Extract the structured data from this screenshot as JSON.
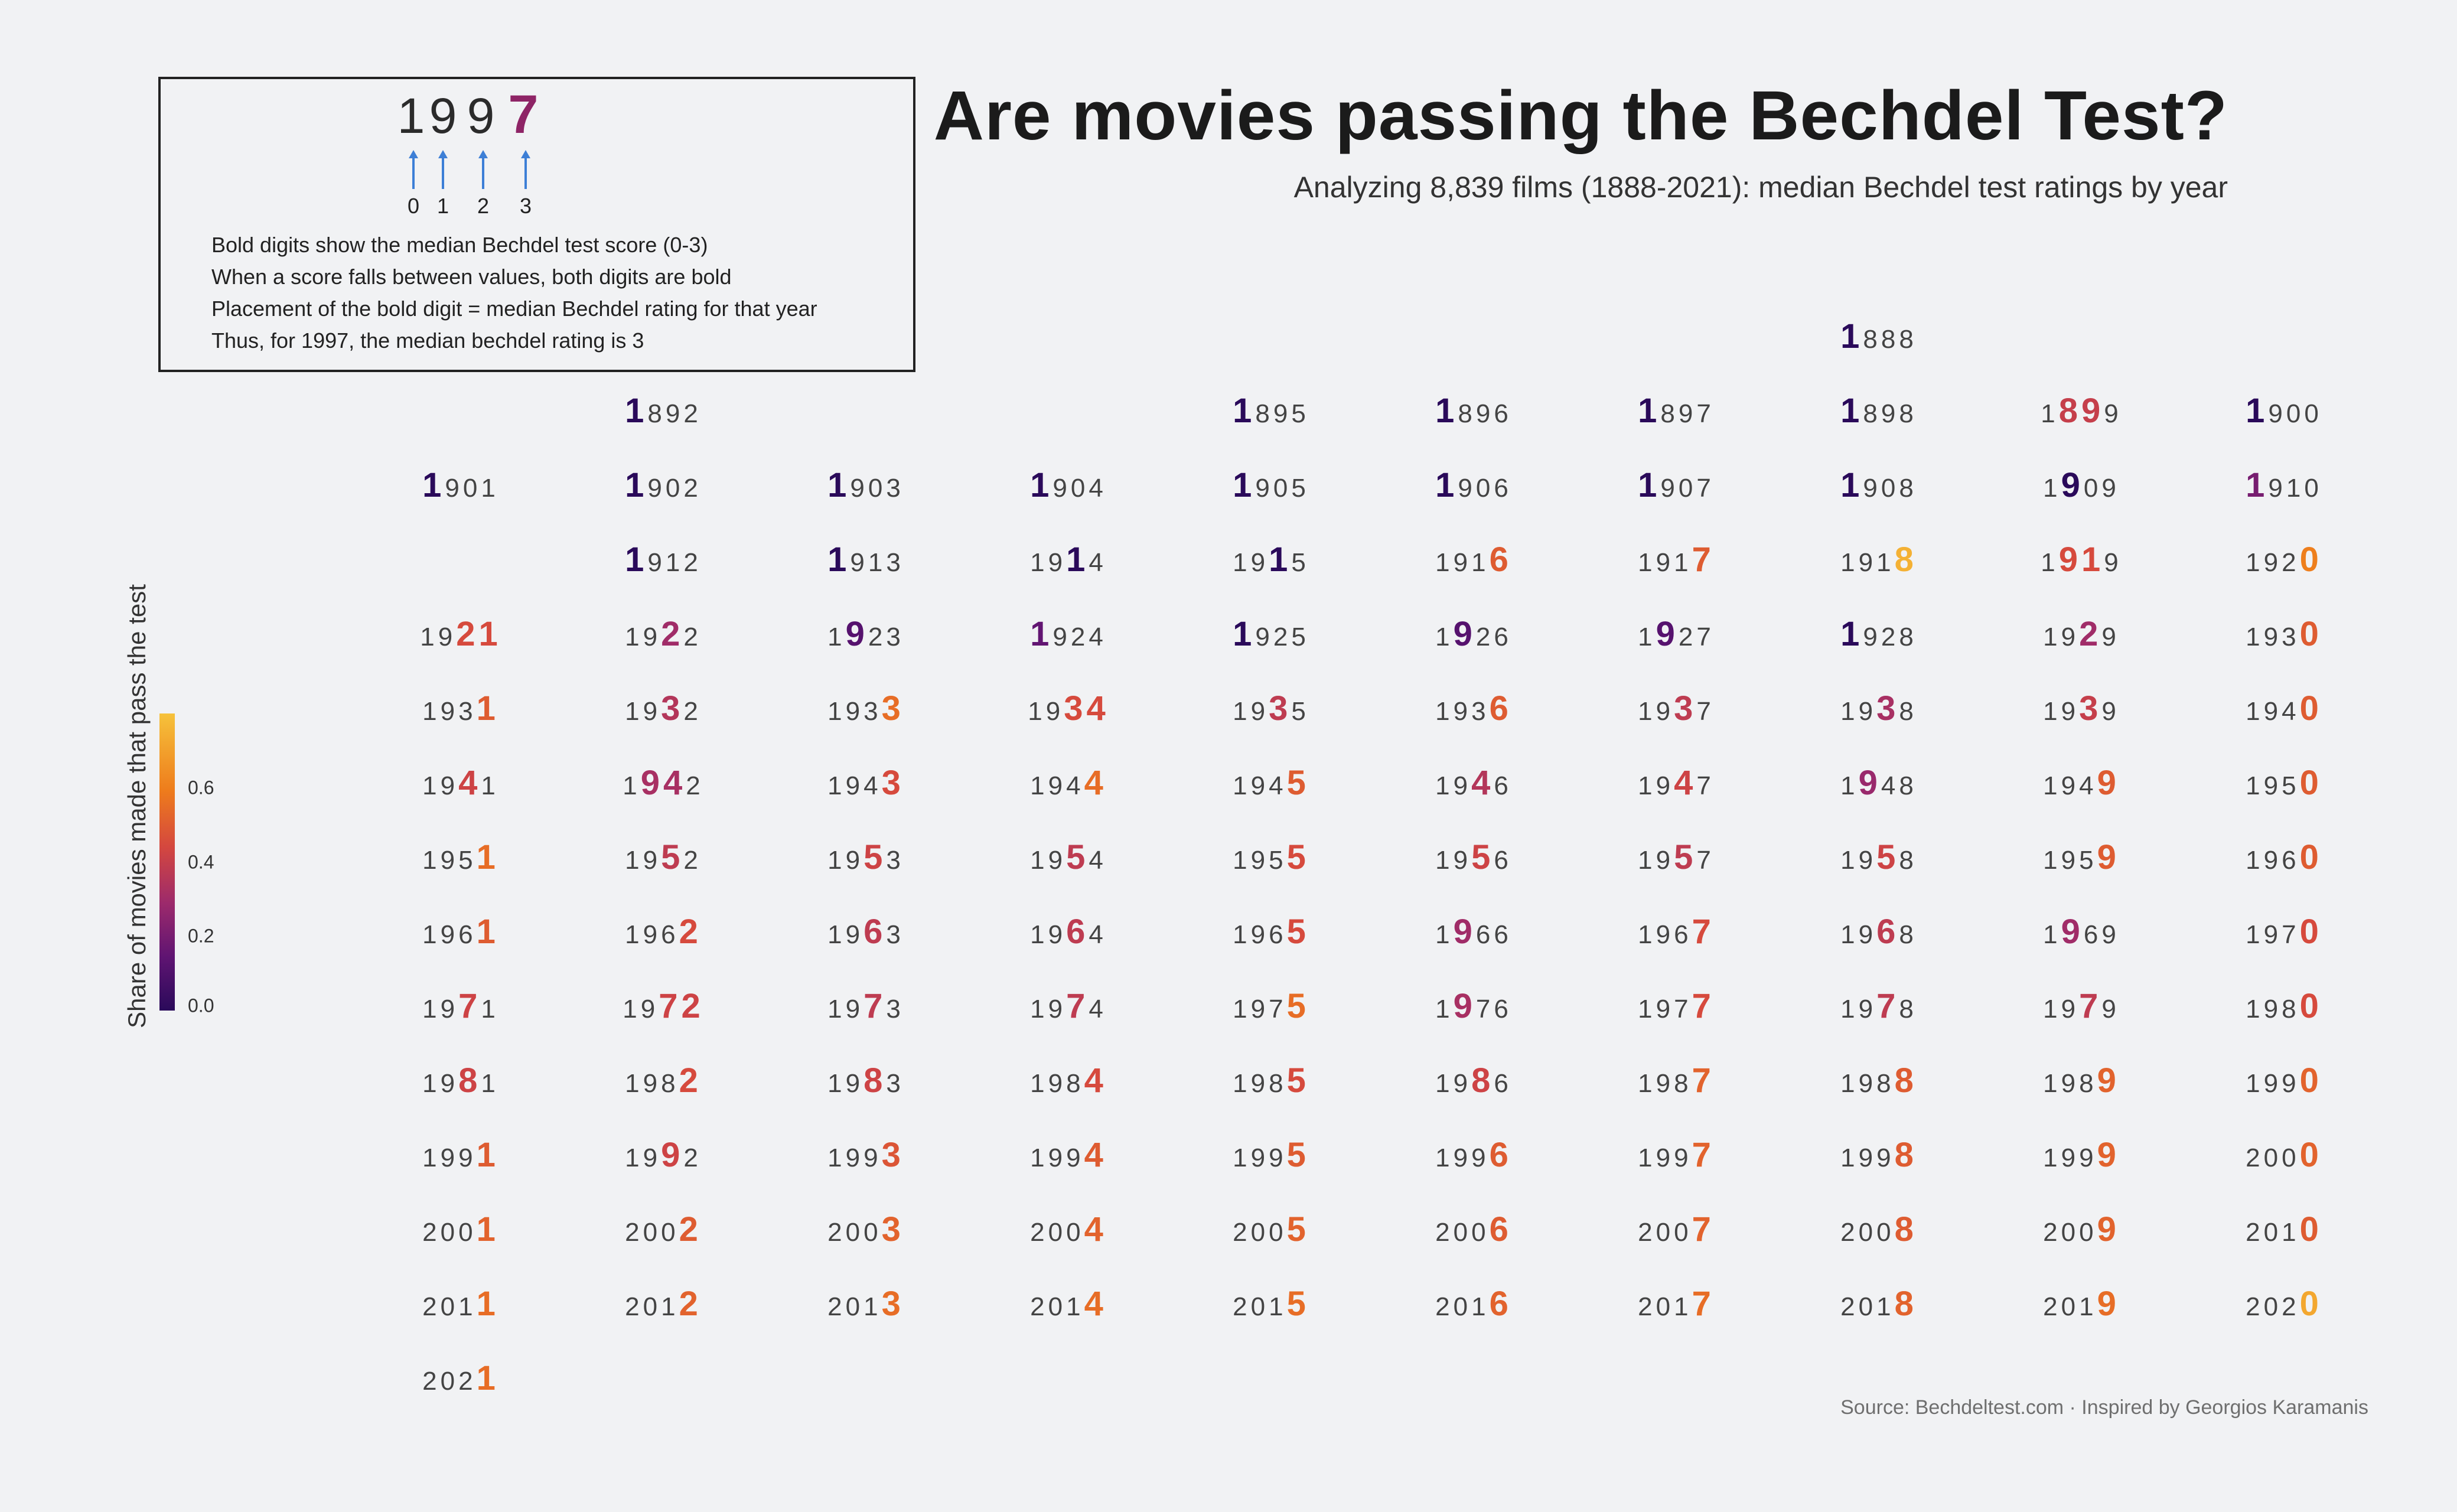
{
  "title": "Are movies passing the Bechdel Test?",
  "subtitle": "Analyzing 8,839 films (1888-2021): median Bechdel test ratings by year",
  "caption": "Source: Bechdeltest.com · Inspired by Georgios Karamanis",
  "legend": {
    "example_digits": [
      "1",
      "9",
      "9",
      "7"
    ],
    "example_bold_index": [
      3
    ],
    "example_bold_color": "#8e2466",
    "position_labels": [
      "0",
      "1",
      "2",
      "3"
    ],
    "arrow_color": "#3d7fd6",
    "lines": [
      "Bold digits show the median Bechdel test score (0-3)",
      "When a score falls between values, both digits are bold",
      "Placement of the bold digit = median Bechdel rating for that year",
      "Thus, for 1997, the median bechdel rating is 3"
    ]
  },
  "colorbar": {
    "title": "Share of movies made that pass the test",
    "ticks": [
      "0.0",
      "0.2",
      "0.4",
      "0.6"
    ],
    "tick_values": [
      0.0,
      0.2,
      0.4,
      0.6
    ],
    "range": [
      0.0,
      0.8
    ]
  },
  "chart_data": {
    "type": "table",
    "columns": 10,
    "row_start_decade": 1880,
    "years": [
      {
        "year": 1888,
        "bold": [
          0
        ],
        "share": 0.0
      },
      {
        "year": 1892,
        "bold": [
          0
        ],
        "share": 0.0
      },
      {
        "year": 1895,
        "bold": [
          0
        ],
        "share": 0.0
      },
      {
        "year": 1896,
        "bold": [
          0
        ],
        "share": 0.0
      },
      {
        "year": 1897,
        "bold": [
          0
        ],
        "share": 0.0
      },
      {
        "year": 1898,
        "bold": [
          0
        ],
        "share": 0.0
      },
      {
        "year": 1899,
        "bold": [
          1,
          2
        ],
        "share": 0.4
      },
      {
        "year": 1900,
        "bold": [
          0
        ],
        "share": 0.0
      },
      {
        "year": 1901,
        "bold": [
          0
        ],
        "share": 0.0
      },
      {
        "year": 1902,
        "bold": [
          0
        ],
        "share": 0.0
      },
      {
        "year": 1903,
        "bold": [
          0
        ],
        "share": 0.0
      },
      {
        "year": 1904,
        "bold": [
          0
        ],
        "share": 0.0
      },
      {
        "year": 1905,
        "bold": [
          0
        ],
        "share": 0.0
      },
      {
        "year": 1906,
        "bold": [
          0
        ],
        "share": 0.0
      },
      {
        "year": 1907,
        "bold": [
          0
        ],
        "share": 0.0
      },
      {
        "year": 1908,
        "bold": [
          0
        ],
        "share": 0.0
      },
      {
        "year": 1909,
        "bold": [
          1
        ],
        "share": 0.0
      },
      {
        "year": 1910,
        "bold": [
          0
        ],
        "share": 0.2
      },
      {
        "year": 1912,
        "bold": [
          0
        ],
        "share": 0.0
      },
      {
        "year": 1913,
        "bold": [
          0
        ],
        "share": 0.0
      },
      {
        "year": 1914,
        "bold": [
          2
        ],
        "share": 0.0
      },
      {
        "year": 1915,
        "bold": [
          2
        ],
        "share": 0.0
      },
      {
        "year": 1916,
        "bold": [
          3
        ],
        "share": 0.5
      },
      {
        "year": 1917,
        "bold": [
          3
        ],
        "share": 0.5
      },
      {
        "year": 1918,
        "bold": [
          3
        ],
        "share": 0.75
      },
      {
        "year": 1919,
        "bold": [
          1,
          2
        ],
        "share": 0.45
      },
      {
        "year": 1920,
        "bold": [
          3
        ],
        "share": 0.6
      },
      {
        "year": 1921,
        "bold": [
          2,
          3
        ],
        "share": 0.45
      },
      {
        "year": 1922,
        "bold": [
          2
        ],
        "share": 0.3
      },
      {
        "year": 1923,
        "bold": [
          1
        ],
        "share": 0.12
      },
      {
        "year": 1924,
        "bold": [
          0
        ],
        "share": 0.15
      },
      {
        "year": 1925,
        "bold": [
          0
        ],
        "share": 0.0
      },
      {
        "year": 1926,
        "bold": [
          1
        ],
        "share": 0.12
      },
      {
        "year": 1927,
        "bold": [
          1
        ],
        "share": 0.12
      },
      {
        "year": 1928,
        "bold": [
          0
        ],
        "share": 0.0
      },
      {
        "year": 1929,
        "bold": [
          2
        ],
        "share": 0.3
      },
      {
        "year": 1930,
        "bold": [
          3
        ],
        "share": 0.5
      },
      {
        "year": 1931,
        "bold": [
          3
        ],
        "share": 0.5
      },
      {
        "year": 1932,
        "bold": [
          2
        ],
        "share": 0.35
      },
      {
        "year": 1933,
        "bold": [
          3
        ],
        "share": 0.55
      },
      {
        "year": 1934,
        "bold": [
          2,
          3
        ],
        "share": 0.45
      },
      {
        "year": 1935,
        "bold": [
          2
        ],
        "share": 0.38
      },
      {
        "year": 1936,
        "bold": [
          3
        ],
        "share": 0.5
      },
      {
        "year": 1937,
        "bold": [
          2
        ],
        "share": 0.38
      },
      {
        "year": 1938,
        "bold": [
          2
        ],
        "share": 0.32
      },
      {
        "year": 1939,
        "bold": [
          2
        ],
        "share": 0.4
      },
      {
        "year": 1940,
        "bold": [
          3
        ],
        "share": 0.5
      },
      {
        "year": 1941,
        "bold": [
          2
        ],
        "share": 0.42
      },
      {
        "year": 1942,
        "bold": [
          1,
          2
        ],
        "share": 0.32
      },
      {
        "year": 1943,
        "bold": [
          3
        ],
        "share": 0.45
      },
      {
        "year": 1944,
        "bold": [
          3
        ],
        "share": 0.55
      },
      {
        "year": 1945,
        "bold": [
          3
        ],
        "share": 0.5
      },
      {
        "year": 1946,
        "bold": [
          2
        ],
        "share": 0.35
      },
      {
        "year": 1947,
        "bold": [
          2
        ],
        "share": 0.42
      },
      {
        "year": 1948,
        "bold": [
          1
        ],
        "share": 0.28
      },
      {
        "year": 1949,
        "bold": [
          3
        ],
        "share": 0.5
      },
      {
        "year": 1950,
        "bold": [
          3
        ],
        "share": 0.5
      },
      {
        "year": 1951,
        "bold": [
          3
        ],
        "share": 0.55
      },
      {
        "year": 1952,
        "bold": [
          2
        ],
        "share": 0.38
      },
      {
        "year": 1953,
        "bold": [
          2
        ],
        "share": 0.42
      },
      {
        "year": 1954,
        "bold": [
          2
        ],
        "share": 0.38
      },
      {
        "year": 1955,
        "bold": [
          3
        ],
        "share": 0.45
      },
      {
        "year": 1956,
        "bold": [
          2
        ],
        "share": 0.42
      },
      {
        "year": 1957,
        "bold": [
          2
        ],
        "share": 0.38
      },
      {
        "year": 1958,
        "bold": [
          2
        ],
        "share": 0.42
      },
      {
        "year": 1959,
        "bold": [
          3
        ],
        "share": 0.5
      },
      {
        "year": 1960,
        "bold": [
          3
        ],
        "share": 0.5
      },
      {
        "year": 1961,
        "bold": [
          3
        ],
        "share": 0.5
      },
      {
        "year": 1962,
        "bold": [
          3
        ],
        "share": 0.45
      },
      {
        "year": 1963,
        "bold": [
          2
        ],
        "share": 0.38
      },
      {
        "year": 1964,
        "bold": [
          2
        ],
        "share": 0.38
      },
      {
        "year": 1965,
        "bold": [
          3
        ],
        "share": 0.45
      },
      {
        "year": 1966,
        "bold": [
          1
        ],
        "share": 0.3
      },
      {
        "year": 1967,
        "bold": [
          3
        ],
        "share": 0.45
      },
      {
        "year": 1968,
        "bold": [
          2
        ],
        "share": 0.38
      },
      {
        "year": 1969,
        "bold": [
          1
        ],
        "share": 0.3
      },
      {
        "year": 1970,
        "bold": [
          3
        ],
        "share": 0.45
      },
      {
        "year": 1971,
        "bold": [
          2
        ],
        "share": 0.42
      },
      {
        "year": 1972,
        "bold": [
          2,
          3
        ],
        "share": 0.42
      },
      {
        "year": 1973,
        "bold": [
          2
        ],
        "share": 0.38
      },
      {
        "year": 1974,
        "bold": [
          2
        ],
        "share": 0.38
      },
      {
        "year": 1975,
        "bold": [
          3
        ],
        "share": 0.55
      },
      {
        "year": 1976,
        "bold": [
          1
        ],
        "share": 0.32
      },
      {
        "year": 1977,
        "bold": [
          3
        ],
        "share": 0.45
      },
      {
        "year": 1978,
        "bold": [
          2
        ],
        "share": 0.38
      },
      {
        "year": 1979,
        "bold": [
          2
        ],
        "share": 0.38
      },
      {
        "year": 1980,
        "bold": [
          3
        ],
        "share": 0.45
      },
      {
        "year": 1981,
        "bold": [
          2
        ],
        "share": 0.42
      },
      {
        "year": 1982,
        "bold": [
          3
        ],
        "share": 0.45
      },
      {
        "year": 1983,
        "bold": [
          2
        ],
        "share": 0.42
      },
      {
        "year": 1984,
        "bold": [
          3
        ],
        "share": 0.45
      },
      {
        "year": 1985,
        "bold": [
          3
        ],
        "share": 0.45
      },
      {
        "year": 1986,
        "bold": [
          2
        ],
        "share": 0.42
      },
      {
        "year": 1987,
        "bold": [
          3
        ],
        "share": 0.52
      },
      {
        "year": 1988,
        "bold": [
          3
        ],
        "share": 0.5
      },
      {
        "year": 1989,
        "bold": [
          3
        ],
        "share": 0.52
      },
      {
        "year": 1990,
        "bold": [
          3
        ],
        "share": 0.52
      },
      {
        "year": 1991,
        "bold": [
          3
        ],
        "share": 0.5
      },
      {
        "year": 1992,
        "bold": [
          2
        ],
        "share": 0.42
      },
      {
        "year": 1993,
        "bold": [
          3
        ],
        "share": 0.48
      },
      {
        "year": 1994,
        "bold": [
          3
        ],
        "share": 0.5
      },
      {
        "year": 1995,
        "bold": [
          3
        ],
        "share": 0.5
      },
      {
        "year": 1996,
        "bold": [
          3
        ],
        "share": 0.5
      },
      {
        "year": 1997,
        "bold": [
          3
        ],
        "share": 0.52
      },
      {
        "year": 1998,
        "bold": [
          3
        ],
        "share": 0.5
      },
      {
        "year": 1999,
        "bold": [
          3
        ],
        "share": 0.52
      },
      {
        "year": 2000,
        "bold": [
          3
        ],
        "share": 0.52
      },
      {
        "year": 2001,
        "bold": [
          3
        ],
        "share": 0.52
      },
      {
        "year": 2002,
        "bold": [
          3
        ],
        "share": 0.5
      },
      {
        "year": 2003,
        "bold": [
          3
        ],
        "share": 0.52
      },
      {
        "year": 2004,
        "bold": [
          3
        ],
        "share": 0.52
      },
      {
        "year": 2005,
        "bold": [
          3
        ],
        "share": 0.52
      },
      {
        "year": 2006,
        "bold": [
          3
        ],
        "share": 0.5
      },
      {
        "year": 2007,
        "bold": [
          3
        ],
        "share": 0.52
      },
      {
        "year": 2008,
        "bold": [
          3
        ],
        "share": 0.5
      },
      {
        "year": 2009,
        "bold": [
          3
        ],
        "share": 0.52
      },
      {
        "year": 2010,
        "bold": [
          3
        ],
        "share": 0.5
      },
      {
        "year": 2011,
        "bold": [
          3
        ],
        "share": 0.55
      },
      {
        "year": 2012,
        "bold": [
          3
        ],
        "share": 0.52
      },
      {
        "year": 2013,
        "bold": [
          3
        ],
        "share": 0.55
      },
      {
        "year": 2014,
        "bold": [
          3
        ],
        "share": 0.55
      },
      {
        "year": 2015,
        "bold": [
          3
        ],
        "share": 0.55
      },
      {
        "year": 2016,
        "bold": [
          3
        ],
        "share": 0.52
      },
      {
        "year": 2017,
        "bold": [
          3
        ],
        "share": 0.55
      },
      {
        "year": 2018,
        "bold": [
          3
        ],
        "share": 0.52
      },
      {
        "year": 2019,
        "bold": [
          3
        ],
        "share": 0.55
      },
      {
        "year": 2020,
        "bold": [
          3
        ],
        "share": 0.72
      },
      {
        "year": 2021,
        "bold": [
          3
        ],
        "share": 0.55
      }
    ]
  }
}
